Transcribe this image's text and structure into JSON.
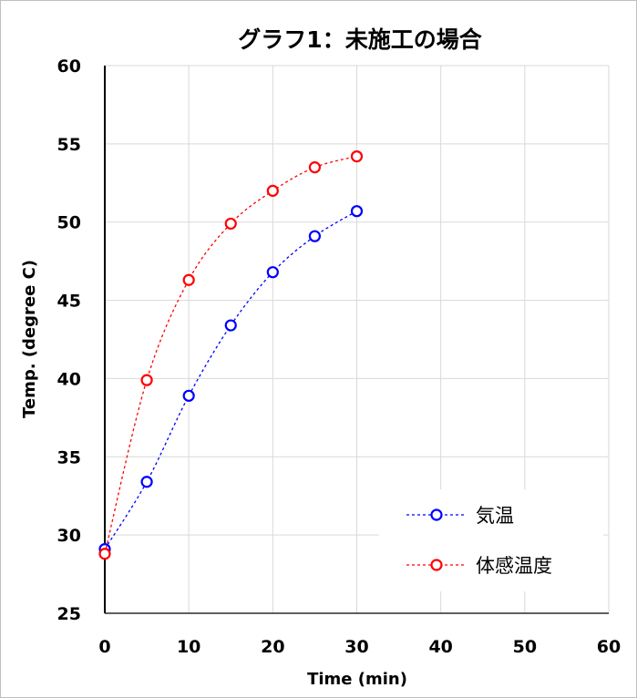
{
  "chart_data": {
    "type": "scatter",
    "title": "グラフ1：未施工の場合",
    "xlabel": "Time (min)",
    "ylabel": "Temp. (degree C)",
    "xlim": [
      0,
      60
    ],
    "ylim": [
      25,
      60
    ],
    "xticks": [
      "0",
      "10",
      "20",
      "30",
      "40",
      "50",
      "60"
    ],
    "yticks": [
      "25",
      "30",
      "35",
      "40",
      "45",
      "50",
      "55",
      "60"
    ],
    "grid": true,
    "legend_position": "bottom-right",
    "line_style": "dashed smooth",
    "series": [
      {
        "name": "気温",
        "color": "#0000ff",
        "x": [
          0,
          5,
          10,
          15,
          20,
          25,
          30
        ],
        "y": [
          29.1,
          33.4,
          38.9,
          43.4,
          46.8,
          49.1,
          50.7
        ]
      },
      {
        "name": "体感温度",
        "color": "#ff0000",
        "x": [
          0,
          5,
          10,
          15,
          20,
          25,
          30
        ],
        "y": [
          28.8,
          39.9,
          46.3,
          49.9,
          52.0,
          53.5,
          54.2
        ]
      }
    ]
  }
}
